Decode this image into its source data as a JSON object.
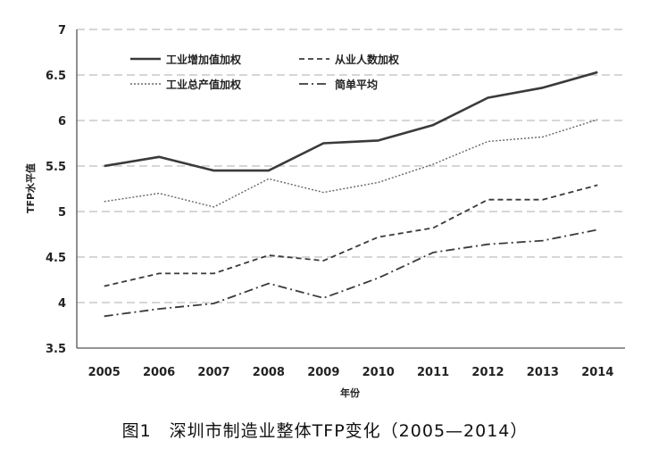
{
  "caption": "图1　深圳市制造业整体TFP变化（2005—2014）",
  "chart_data": {
    "type": "line",
    "title": "",
    "xlabel": "年份",
    "ylabel": "TFP水平值",
    "ylim": [
      3.5,
      7
    ],
    "yticks": [
      "3.5",
      "4",
      "4.5",
      "5",
      "5.5",
      "6",
      "6.5",
      "7"
    ],
    "x": [
      "2005",
      "2006",
      "2007",
      "2008",
      "2009",
      "2010",
      "2011",
      "2012",
      "2013",
      "2014"
    ],
    "grid": "horizontal-dashed",
    "legend_placement": "top-left",
    "series": [
      {
        "name": "工业增加值加权",
        "style": "solid-thick",
        "color": "#3a3a3a",
        "values": [
          5.5,
          5.6,
          5.45,
          5.45,
          5.75,
          5.78,
          5.95,
          6.25,
          6.36,
          6.53
        ]
      },
      {
        "name": "从业人数加权",
        "style": "dashed",
        "color": "#3a3a3a",
        "values": [
          4.18,
          4.32,
          4.32,
          4.52,
          4.46,
          4.72,
          4.82,
          5.13,
          5.13,
          5.29
        ]
      },
      {
        "name": "工业总产值加权",
        "style": "dotted",
        "color": "#666666",
        "values": [
          5.11,
          5.2,
          5.05,
          5.36,
          5.21,
          5.32,
          5.52,
          5.77,
          5.82,
          6.01
        ]
      },
      {
        "name": "简单平均",
        "style": "dash-dot",
        "color": "#3a3a3a",
        "values": [
          3.85,
          3.93,
          3.99,
          4.21,
          4.05,
          4.27,
          4.55,
          4.64,
          4.68,
          4.8
        ]
      }
    ]
  }
}
